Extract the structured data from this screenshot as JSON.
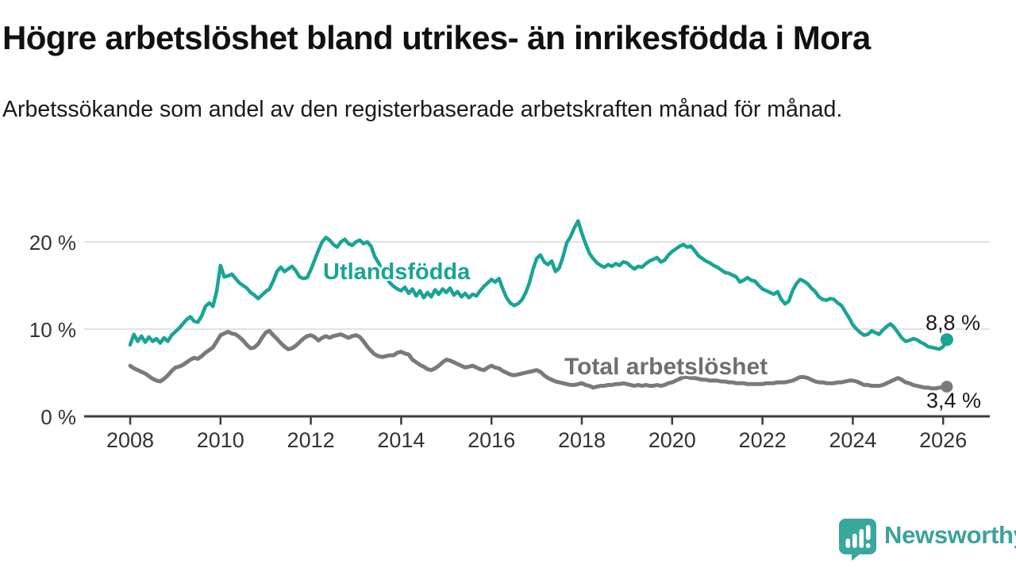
{
  "page": {
    "title": "Högre arbetslöshet bland utrikes- än inrikesfödda i Mora",
    "subtitle": "Arbetssökande som andel av den registerbaserade arbetskraften månad för månad."
  },
  "footer": {
    "brand": "Newsworthy",
    "brand_color": "#3aa29a",
    "logo_icon": "speech-bubble-bar-chart-icon"
  },
  "chart_data": {
    "type": "line",
    "title": "Högre arbetslöshet bland utrikes- än inrikesfödda i Mora",
    "xlabel": "",
    "ylabel": "",
    "unit": "%",
    "grid": "horizontal",
    "legend_position": "inline-labels",
    "x_start": 2008.0,
    "x_step": 0.0833333,
    "x_ticks": [
      2008,
      2010,
      2012,
      2014,
      2016,
      2018,
      2020,
      2022,
      2024,
      2026
    ],
    "y_ticks": [
      {
        "value": 0,
        "label": "0 %"
      },
      {
        "value": 10,
        "label": "10 %"
      },
      {
        "value": 20,
        "label": "20 %"
      }
    ],
    "ylim": [
      0,
      23
    ],
    "xlim": [
      2007,
      2027
    ],
    "colors": {
      "foreign_born": "#19a495",
      "total": "#7a7a7a",
      "grid": "#d9d9d9",
      "axis": "#3c3c3c"
    },
    "series": [
      {
        "name": "Utlandsfödda",
        "color": "#19a495",
        "end_label": "8,8 %",
        "end_value": 8.8,
        "values": [
          8.2,
          9.4,
          8.6,
          9.2,
          8.5,
          9.1,
          8.6,
          8.9,
          8.4,
          9.0,
          8.6,
          9.3,
          9.7,
          10.1,
          10.6,
          11.1,
          11.4,
          10.9,
          10.8,
          11.5,
          12.6,
          13.0,
          12.6,
          14.4,
          17.3,
          16.0,
          16.1,
          16.3,
          15.8,
          15.3,
          15.0,
          14.7,
          14.2,
          13.9,
          13.5,
          13.9,
          14.3,
          14.6,
          15.5,
          16.6,
          17.1,
          16.6,
          16.9,
          17.2,
          16.7,
          16.0,
          15.8,
          15.9,
          16.8,
          17.9,
          19.0,
          20.0,
          20.5,
          20.2,
          19.7,
          19.4,
          20.0,
          20.3,
          19.8,
          19.6,
          20.0,
          20.2,
          19.8,
          20.0,
          19.5,
          18.3,
          17.6,
          16.7,
          15.9,
          15.3,
          14.9,
          14.6,
          14.4,
          14.8,
          14.1,
          14.6,
          13.8,
          14.4,
          13.6,
          14.2,
          13.7,
          14.5,
          14.0,
          14.6,
          14.2,
          14.7,
          13.9,
          14.3,
          13.7,
          14.1,
          13.6,
          14.0,
          13.8,
          14.4,
          14.9,
          15.3,
          15.7,
          15.4,
          15.8,
          14.6,
          13.6,
          13.0,
          12.7,
          12.9,
          13.3,
          14.1,
          15.2,
          16.8,
          18.1,
          18.5,
          17.7,
          17.4,
          17.8,
          16.6,
          17.0,
          18.3,
          19.9,
          20.6,
          21.6,
          22.4,
          21.0,
          19.8,
          18.7,
          18.1,
          17.6,
          17.3,
          17.1,
          17.4,
          17.2,
          17.5,
          17.3,
          17.7,
          17.6,
          17.2,
          16.9,
          17.2,
          17.1,
          17.5,
          17.8,
          18.0,
          18.2,
          17.7,
          17.9,
          18.5,
          18.9,
          19.2,
          19.5,
          19.7,
          19.4,
          19.5,
          19.0,
          18.4,
          18.1,
          17.8,
          17.6,
          17.3,
          17.1,
          16.8,
          16.5,
          16.4,
          16.2,
          16.0,
          15.4,
          15.6,
          15.9,
          15.6,
          15.5,
          15.0,
          14.6,
          14.4,
          14.2,
          14.0,
          14.3,
          13.4,
          12.9,
          13.2,
          14.4,
          15.2,
          15.7,
          15.5,
          15.2,
          14.7,
          14.3,
          13.7,
          13.4,
          13.3,
          13.5,
          13.4,
          13.0,
          12.7,
          12.0,
          11.3,
          10.5,
          10.0,
          9.6,
          9.3,
          9.4,
          9.8,
          9.6,
          9.4,
          9.9,
          10.3,
          10.6,
          10.2,
          9.6,
          9.0,
          8.6,
          8.7,
          8.9,
          8.8,
          8.5,
          8.3,
          8.0,
          7.9,
          7.8,
          7.7,
          8.0,
          8.8
        ]
      },
      {
        "name": "Total arbetslöshet",
        "color": "#7a7a7a",
        "end_label": "3,4 %",
        "end_value": 3.4,
        "values": [
          5.8,
          5.5,
          5.3,
          5.1,
          4.9,
          4.6,
          4.3,
          4.1,
          4.0,
          4.3,
          4.7,
          5.2,
          5.6,
          5.7,
          5.9,
          6.2,
          6.5,
          6.7,
          6.6,
          6.9,
          7.3,
          7.6,
          7.9,
          8.6,
          9.3,
          9.5,
          9.7,
          9.5,
          9.4,
          9.1,
          8.7,
          8.2,
          7.8,
          7.9,
          8.3,
          9.0,
          9.6,
          9.8,
          9.3,
          8.9,
          8.4,
          8.0,
          7.7,
          7.8,
          8.1,
          8.5,
          8.9,
          9.2,
          9.3,
          9.1,
          8.7,
          9.0,
          9.2,
          9.0,
          9.2,
          9.3,
          9.4,
          9.2,
          9.0,
          9.2,
          9.3,
          9.1,
          8.6,
          8.0,
          7.5,
          7.1,
          6.9,
          6.8,
          6.9,
          7.0,
          7.0,
          7.3,
          7.4,
          7.2,
          7.1,
          6.5,
          6.2,
          5.9,
          5.7,
          5.4,
          5.3,
          5.5,
          5.8,
          6.2,
          6.5,
          6.4,
          6.2,
          6.0,
          5.8,
          5.6,
          5.7,
          5.8,
          5.6,
          5.4,
          5.3,
          5.6,
          5.8,
          5.6,
          5.5,
          5.2,
          5.0,
          4.8,
          4.7,
          4.8,
          4.9,
          5.0,
          5.1,
          5.2,
          5.3,
          5.1,
          4.7,
          4.4,
          4.2,
          4.0,
          3.9,
          3.8,
          3.7,
          3.6,
          3.6,
          3.7,
          3.8,
          3.6,
          3.5,
          3.3,
          3.4,
          3.5,
          3.5,
          3.6,
          3.6,
          3.7,
          3.7,
          3.8,
          3.7,
          3.6,
          3.5,
          3.6,
          3.5,
          3.6,
          3.5,
          3.5,
          3.6,
          3.5,
          3.6,
          3.8,
          3.9,
          4.1,
          4.3,
          4.5,
          4.5,
          4.4,
          4.4,
          4.3,
          4.2,
          4.2,
          4.1,
          4.1,
          4.1,
          4.0,
          4.0,
          3.9,
          3.9,
          3.8,
          3.8,
          3.8,
          3.7,
          3.7,
          3.7,
          3.7,
          3.7,
          3.8,
          3.8,
          3.8,
          3.9,
          3.9,
          3.9,
          4.0,
          4.1,
          4.3,
          4.5,
          4.5,
          4.4,
          4.2,
          4.0,
          3.9,
          3.9,
          3.8,
          3.8,
          3.8,
          3.9,
          3.9,
          4.0,
          4.1,
          4.1,
          4.0,
          3.8,
          3.6,
          3.6,
          3.5,
          3.5,
          3.5,
          3.6,
          3.8,
          4.0,
          4.2,
          4.4,
          4.2,
          3.9,
          3.8,
          3.6,
          3.5,
          3.4,
          3.3,
          3.3,
          3.2,
          3.2,
          3.3,
          3.3,
          3.4
        ]
      }
    ]
  }
}
